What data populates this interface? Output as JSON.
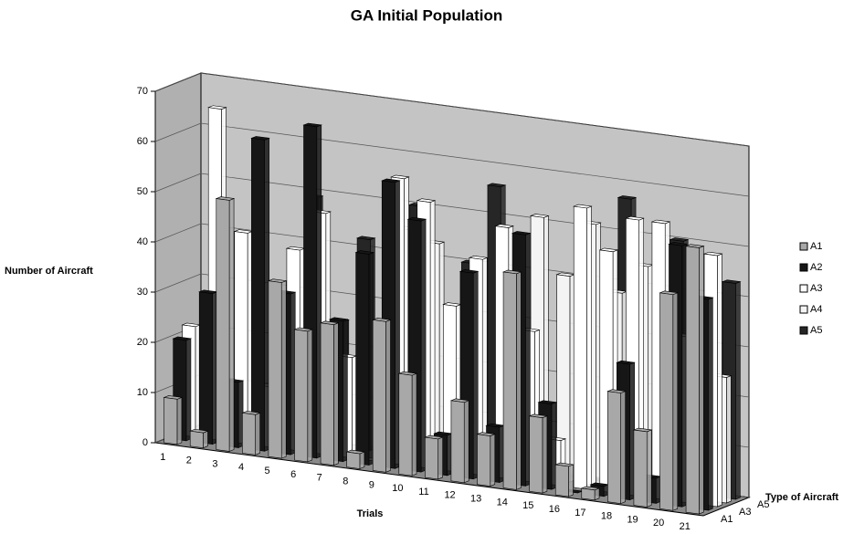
{
  "chart_data": {
    "type": "bar3d",
    "title": "GA Initial Population",
    "y_label": "Number of Aircraft",
    "x_label": "Trials",
    "z_label": "Type of Aircraft",
    "categories": [
      "1",
      "2",
      "3",
      "4",
      "5",
      "6",
      "7",
      "8",
      "9",
      "10",
      "11",
      "12",
      "13",
      "14",
      "15",
      "16",
      "17",
      "18",
      "19",
      "20",
      "21"
    ],
    "depth_categories": [
      "A1",
      null,
      "A3",
      null,
      "A5"
    ],
    "ylim": [
      0,
      70
    ],
    "yticks": [
      0,
      10,
      20,
      30,
      40,
      50,
      60,
      70
    ],
    "grid": true,
    "legend": "right",
    "series": [
      {
        "name": "A1",
        "color": "#a8a8a8",
        "values": [
          9,
          3,
          50,
          8,
          35,
          26,
          28,
          3,
          30,
          20,
          8,
          16,
          10,
          43,
          15,
          6,
          2,
          22,
          15,
          43,
          53
        ]
      },
      {
        "name": "A2",
        "color": "#161616",
        "values": [
          20,
          30,
          13,
          62,
          32,
          66,
          28,
          42,
          57,
          50,
          8,
          41,
          11,
          50,
          17,
          0,
          2,
          27,
          5,
          52,
          42
        ]
      },
      {
        "name": "A3",
        "color": "#ffffff",
        "values": [
          22,
          66,
          42,
          12,
          40,
          48,
          20,
          0,
          57,
          53,
          33,
          43,
          50,
          30,
          9,
          56,
          48,
          55,
          55,
          33,
          50
        ]
      },
      {
        "name": "A4",
        "color": "#f4f4f4",
        "values": [
          0,
          0,
          0,
          0,
          0,
          0,
          0,
          22,
          46,
          44,
          0,
          0,
          0,
          52,
          41,
          52,
          39,
          45,
          25,
          22,
          25
        ]
      },
      {
        "name": "A5",
        "color": "#262626",
        "values": [
          0,
          0,
          0,
          0,
          49,
          25,
          42,
          0,
          50,
          0,
          40,
          56,
          0,
          0,
          0,
          0,
          57,
          0,
          50,
          6,
          43
        ]
      }
    ]
  }
}
